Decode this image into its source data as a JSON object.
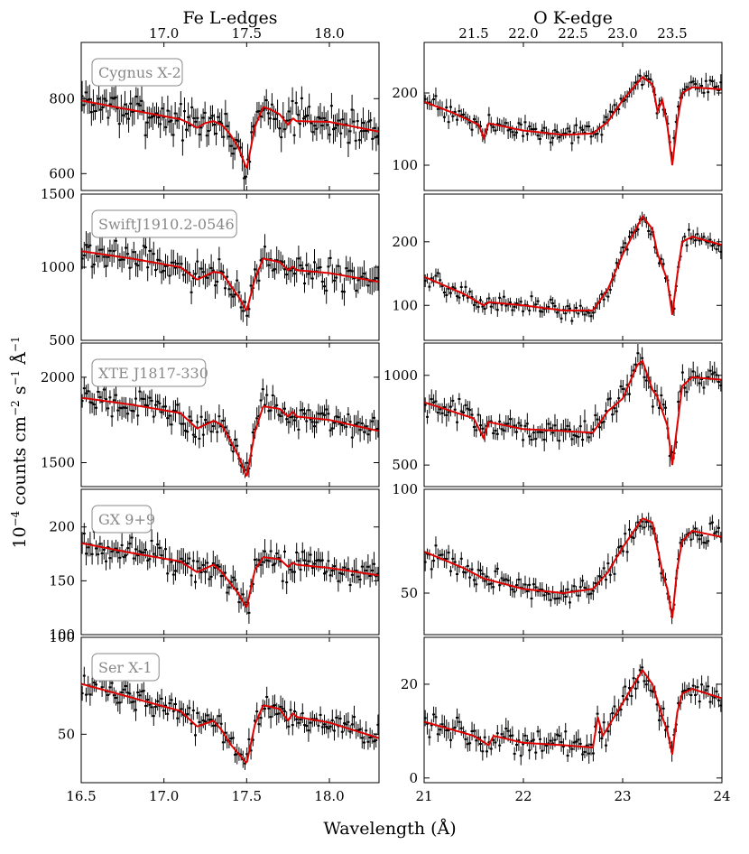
{
  "chart_data": {
    "type": "line",
    "xlabel": "Wavelength (Å)",
    "ylabel": "10^-4 counts cm^-2 s^-1 Å^-1",
    "ylabel_parts": {
      "base": "10",
      "exp1": "−4",
      "mid1": " counts cm",
      "exp2": "−2",
      "mid2": " s",
      "exp3": "−1",
      "mid3": " Å",
      "exp4": "−1"
    },
    "columns": [
      {
        "title": "Fe L-edges",
        "xlim": [
          16.5,
          18.3
        ],
        "bottom_ticks": [
          16.5,
          17.0,
          17.5,
          18.0
        ],
        "bottom_tick_labels": [
          "16.5",
          "17.0",
          "17.5",
          "18.0"
        ],
        "top_ticks": [
          17.0,
          17.5,
          18.0
        ],
        "top_tick_labels": [
          "17.0",
          "17.5",
          "18.0"
        ]
      },
      {
        "title": "O K-edge",
        "xlim": [
          21.0,
          24.0
        ],
        "bottom_ticks": [
          21,
          22,
          23,
          24
        ],
        "bottom_tick_labels": [
          "21",
          "22",
          "23",
          "24"
        ],
        "top_ticks": [
          21.5,
          22.0,
          22.5,
          23.0,
          23.5
        ],
        "top_tick_labels": [
          "21.5",
          "22.0",
          "22.5",
          "23.0",
          "23.5"
        ]
      }
    ],
    "rows": [
      {
        "source": "Cygnus X-2",
        "panels": [
          {
            "ylim": [
              555,
              950
            ],
            "yticks": [
              600,
              800
            ],
            "ytick_labels": [
              "600",
              "800"
            ],
            "model": {
              "x": [
                16.5,
                16.8,
                17.1,
                17.15,
                17.2,
                17.25,
                17.3,
                17.35,
                17.4,
                17.45,
                17.5,
                17.55,
                17.6,
                17.65,
                17.7,
                17.75,
                17.78,
                17.8,
                18.0,
                18.3
              ],
              "y": [
                795,
                770,
                745,
                735,
                722,
                735,
                740,
                730,
                705,
                670,
                612,
                725,
                778,
                770,
                758,
                730,
                748,
                740,
                738,
                712
              ]
            },
            "noise": 35,
            "npts": 160
          },
          {
            "ylim": [
              65,
              270
            ],
            "yticks": [
              100,
              200
            ],
            "ytick_labels": [
              "100",
              "200"
            ],
            "model": {
              "x": [
                21.0,
                21.3,
                21.55,
                21.6,
                21.65,
                22.0,
                22.4,
                22.7,
                22.85,
                23.0,
                23.2,
                23.3,
                23.35,
                23.4,
                23.45,
                23.5,
                23.55,
                23.6,
                23.7,
                24.0
              ],
              "y": [
                188,
                172,
                156,
                138,
                158,
                148,
                142,
                144,
                160,
                190,
                222,
                212,
                175,
                190,
                155,
                100,
                160,
                200,
                208,
                205
              ]
            },
            "noise": 10,
            "npts": 140
          }
        ]
      },
      {
        "source": "SwiftJ1910.2-0546",
        "panels": [
          {
            "ylim": [
              500,
              1500
            ],
            "yticks": [
              500,
              1000,
              1500
            ],
            "ytick_labels": [
              "500",
              "1000",
              "1500"
            ],
            "model": {
              "x": [
                16.5,
                16.8,
                17.1,
                17.2,
                17.3,
                17.35,
                17.4,
                17.45,
                17.5,
                17.55,
                17.6,
                17.7,
                17.75,
                17.78,
                17.8,
                18.0,
                18.3
              ],
              "y": [
                1110,
                1060,
                1000,
                915,
                968,
                960,
                880,
                800,
                700,
                920,
                1060,
                1035,
                980,
                1005,
                980,
                960,
                900
              ]
            },
            "noise": 80,
            "npts": 150
          },
          {
            "ylim": [
              45,
              275
            ],
            "yticks": [
              100,
              200
            ],
            "ytick_labels": [
              "100",
              "200"
            ],
            "model": {
              "x": [
                21.0,
                21.4,
                21.6,
                21.65,
                22.0,
                22.4,
                22.7,
                22.85,
                23.0,
                23.2,
                23.3,
                23.35,
                23.45,
                23.5,
                23.55,
                23.6,
                23.7,
                24.0
              ],
              "y": [
                145,
                118,
                100,
                105,
                100,
                92,
                92,
                125,
                180,
                240,
                220,
                182,
                140,
                85,
                148,
                200,
                208,
                195
              ]
            },
            "noise": 10,
            "npts": 140
          }
        ]
      },
      {
        "source": "XTE J1817-330",
        "panels": [
          {
            "ylim": [
              1360,
              2200
            ],
            "yticks": [
              1500,
              2000
            ],
            "ytick_labels": [
              "1500",
              "2000"
            ],
            "model": {
              "x": [
                16.5,
                16.8,
                17.1,
                17.2,
                17.3,
                17.35,
                17.4,
                17.45,
                17.5,
                17.55,
                17.6,
                17.7,
                17.75,
                17.78,
                17.8,
                18.0,
                18.3
              ],
              "y": [
                1880,
                1840,
                1790,
                1700,
                1745,
                1720,
                1630,
                1540,
                1415,
                1680,
                1830,
                1815,
                1770,
                1800,
                1770,
                1750,
                1685
              ]
            },
            "noise": 60,
            "npts": 150
          },
          {
            "ylim": [
              380,
              1180
            ],
            "yticks": [
              500,
              1000
            ],
            "ytick_labels": [
              "500",
              "1000"
            ],
            "model": {
              "x": [
                21.0,
                21.5,
                21.6,
                21.65,
                22.0,
                22.4,
                22.7,
                22.85,
                23.0,
                23.15,
                23.2,
                23.3,
                23.35,
                23.45,
                23.5,
                23.55,
                23.6,
                23.7,
                24.0
              ],
              "y": [
                850,
                760,
                650,
                740,
                700,
                690,
                680,
                800,
                870,
                1060,
                1080,
                920,
                880,
                720,
                500,
                720,
                940,
                990,
                975
              ]
            },
            "noise": 55,
            "npts": 140
          }
        ]
      },
      {
        "source": "GX 9+9",
        "panels": [
          {
            "ylim": [
              100,
              235
            ],
            "yticks": [
              100,
              150,
              200
            ],
            "ytick_labels": [
              "100",
              "150",
              "200"
            ],
            "model": {
              "x": [
                16.5,
                16.8,
                17.1,
                17.2,
                17.3,
                17.35,
                17.4,
                17.45,
                17.5,
                17.55,
                17.6,
                17.7,
                17.75,
                17.78,
                17.8,
                18.0,
                18.3
              ],
              "y": [
                185,
                176,
                168,
                158,
                165,
                158,
                148,
                138,
                125,
                160,
                172,
                170,
                163,
                167,
                165,
                162,
                155
              ]
            },
            "noise": 10,
            "npts": 150
          },
          {
            "ylim": [
              30,
              100
            ],
            "yticks": [
              50,
              100
            ],
            "ytick_labels": [
              "50",
              "100"
            ],
            "model": {
              "x": [
                21.0,
                21.4,
                21.6,
                22.0,
                22.4,
                22.7,
                22.85,
                23.0,
                23.2,
                23.3,
                23.4,
                23.45,
                23.5,
                23.55,
                23.6,
                23.7,
                24.0
              ],
              "y": [
                70,
                62,
                57,
                52,
                50,
                52,
                60,
                72,
                86,
                84,
                60,
                52,
                38,
                62,
                75,
                80,
                77
              ]
            },
            "noise": 4,
            "npts": 140
          }
        ]
      },
      {
        "source": "Ser X-1",
        "panels": [
          {
            "ylim": [
              25,
              100
            ],
            "yticks": [
              50,
              100
            ],
            "ytick_labels": [
              "50",
              "100"
            ],
            "model": {
              "x": [
                16.5,
                16.8,
                17.1,
                17.2,
                17.3,
                17.35,
                17.4,
                17.45,
                17.5,
                17.55,
                17.6,
                17.7,
                17.75,
                17.78,
                17.8,
                18.0,
                18.3
              ],
              "y": [
                76,
                69,
                62,
                54,
                57,
                52,
                45,
                40,
                35,
                55,
                65,
                63,
                57,
                61,
                59,
                56,
                48
              ]
            },
            "noise": 5,
            "npts": 150
          },
          {
            "ylim": [
              -1,
              30
            ],
            "yticks": [
              0,
              20
            ],
            "ytick_labels": [
              "0",
              "20"
            ],
            "model": {
              "x": [
                21.0,
                21.5,
                21.65,
                21.7,
                22.0,
                22.4,
                22.7,
                22.75,
                22.8,
                23.0,
                23.2,
                23.3,
                23.4,
                23.45,
                23.5,
                23.55,
                23.6,
                23.7,
                24.0
              ],
              "y": [
                12,
                9,
                7,
                9,
                7.5,
                7,
                6.5,
                13,
                9,
                16,
                23,
                20,
                13,
                10,
                5,
                14,
                18,
                19,
                17
              ]
            },
            "noise": 2,
            "npts": 140
          }
        ]
      }
    ]
  }
}
